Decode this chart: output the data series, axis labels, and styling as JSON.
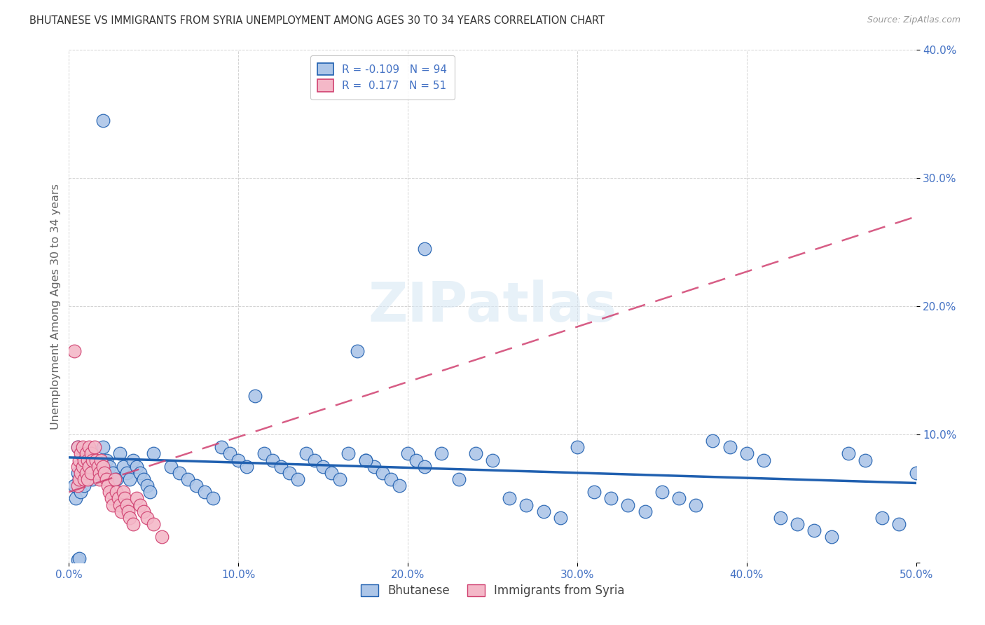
{
  "title": "BHUTANESE VS IMMIGRANTS FROM SYRIA UNEMPLOYMENT AMONG AGES 30 TO 34 YEARS CORRELATION CHART",
  "source": "Source: ZipAtlas.com",
  "ylabel": "Unemployment Among Ages 30 to 34 years",
  "xlim": [
    0,
    0.5
  ],
  "ylim": [
    0,
    0.4
  ],
  "background_color": "#ffffff",
  "grid_color": "#c8c8c8",
  "legend_labels": [
    "Bhutanese",
    "Immigrants from Syria"
  ],
  "blue_color": "#adc6e8",
  "blue_edge": "#2060b0",
  "pink_color": "#f4b8c8",
  "pink_edge": "#d04070",
  "R_blue": -0.109,
  "N_blue": 94,
  "R_pink": 0.177,
  "N_pink": 51,
  "blue_trend_start_y": 0.082,
  "blue_trend_end_y": 0.062,
  "pink_trend_start_y": 0.055,
  "pink_trend_end_y": 0.27,
  "blue_x": [
    0.02,
    0.005,
    0.005,
    0.003,
    0.004,
    0.006,
    0.007,
    0.008,
    0.009,
    0.01,
    0.012,
    0.014,
    0.016,
    0.018,
    0.02,
    0.022,
    0.024,
    0.026,
    0.028,
    0.03,
    0.032,
    0.034,
    0.036,
    0.038,
    0.04,
    0.042,
    0.044,
    0.046,
    0.048,
    0.05,
    0.06,
    0.065,
    0.07,
    0.075,
    0.08,
    0.085,
    0.09,
    0.095,
    0.1,
    0.105,
    0.11,
    0.115,
    0.12,
    0.125,
    0.13,
    0.135,
    0.14,
    0.145,
    0.15,
    0.155,
    0.16,
    0.165,
    0.17,
    0.175,
    0.18,
    0.185,
    0.19,
    0.195,
    0.2,
    0.205,
    0.21,
    0.22,
    0.23,
    0.24,
    0.25,
    0.26,
    0.27,
    0.28,
    0.29,
    0.3,
    0.31,
    0.32,
    0.33,
    0.34,
    0.35,
    0.36,
    0.37,
    0.38,
    0.39,
    0.4,
    0.41,
    0.42,
    0.43,
    0.44,
    0.45,
    0.46,
    0.47,
    0.48,
    0.49,
    0.5,
    0.175,
    0.21,
    0.005,
    0.006
  ],
  "blue_y": [
    0.345,
    0.09,
    0.07,
    0.06,
    0.05,
    0.065,
    0.055,
    0.07,
    0.06,
    0.08,
    0.075,
    0.065,
    0.07,
    0.075,
    0.09,
    0.08,
    0.075,
    0.07,
    0.065,
    0.085,
    0.075,
    0.07,
    0.065,
    0.08,
    0.075,
    0.07,
    0.065,
    0.06,
    0.055,
    0.085,
    0.075,
    0.07,
    0.065,
    0.06,
    0.055,
    0.05,
    0.09,
    0.085,
    0.08,
    0.075,
    0.13,
    0.085,
    0.08,
    0.075,
    0.07,
    0.065,
    0.085,
    0.08,
    0.075,
    0.07,
    0.065,
    0.085,
    0.165,
    0.08,
    0.075,
    0.07,
    0.065,
    0.06,
    0.085,
    0.08,
    0.075,
    0.085,
    0.065,
    0.085,
    0.08,
    0.05,
    0.045,
    0.04,
    0.035,
    0.09,
    0.055,
    0.05,
    0.045,
    0.04,
    0.055,
    0.05,
    0.045,
    0.095,
    0.09,
    0.085,
    0.08,
    0.035,
    0.03,
    0.025,
    0.02,
    0.085,
    0.08,
    0.035,
    0.03,
    0.07,
    0.08,
    0.245,
    0.002,
    0.003
  ],
  "pink_x": [
    0.003,
    0.005,
    0.005,
    0.005,
    0.006,
    0.006,
    0.007,
    0.007,
    0.008,
    0.008,
    0.009,
    0.009,
    0.01,
    0.01,
    0.011,
    0.011,
    0.012,
    0.012,
    0.013,
    0.013,
    0.014,
    0.015,
    0.016,
    0.017,
    0.018,
    0.018,
    0.019,
    0.02,
    0.021,
    0.022,
    0.023,
    0.024,
    0.025,
    0.026,
    0.027,
    0.028,
    0.029,
    0.03,
    0.031,
    0.032,
    0.033,
    0.034,
    0.035,
    0.036,
    0.038,
    0.04,
    0.042,
    0.044,
    0.046,
    0.05,
    0.055
  ],
  "pink_y": [
    0.165,
    0.09,
    0.075,
    0.06,
    0.08,
    0.065,
    0.085,
    0.07,
    0.09,
    0.075,
    0.08,
    0.065,
    0.085,
    0.07,
    0.08,
    0.065,
    0.09,
    0.075,
    0.085,
    0.07,
    0.08,
    0.09,
    0.08,
    0.075,
    0.07,
    0.065,
    0.08,
    0.075,
    0.07,
    0.065,
    0.06,
    0.055,
    0.05,
    0.045,
    0.065,
    0.055,
    0.05,
    0.045,
    0.04,
    0.055,
    0.05,
    0.045,
    0.04,
    0.035,
    0.03,
    0.05,
    0.045,
    0.04,
    0.035,
    0.03,
    0.02
  ]
}
